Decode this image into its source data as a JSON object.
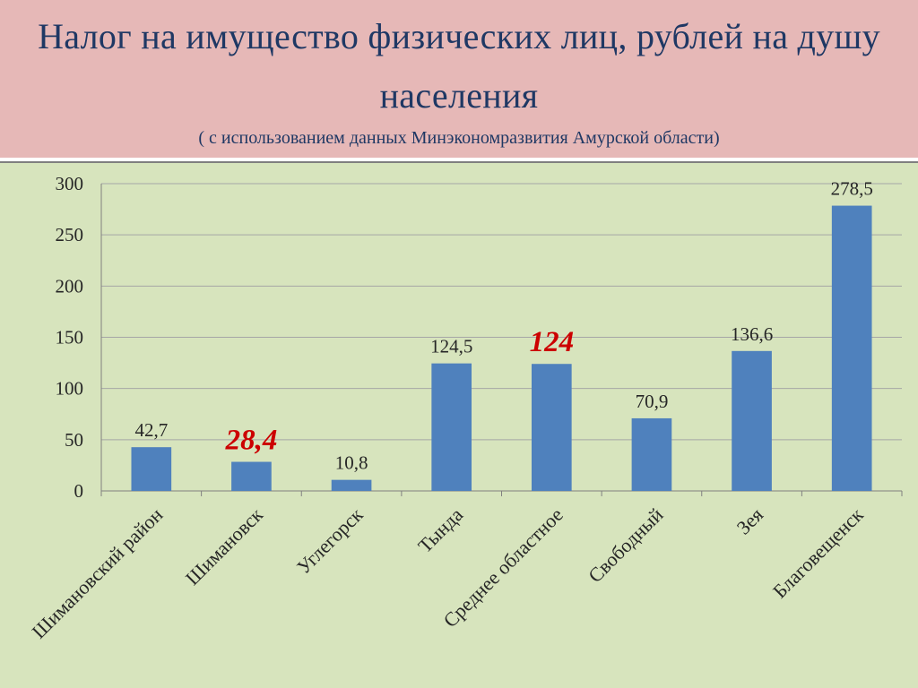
{
  "header": {
    "title": "Налог  на  имущество физических лиц,  рублей на душу населения",
    "subtitle": "( с использованием данных Минэкономразвития Амурской области)",
    "background_color": "#e6b8b7",
    "text_color": "#1f3864"
  },
  "chart_data": {
    "type": "bar",
    "categories": [
      "Шимановский район",
      "Шимановск",
      "Углегорск",
      "Тында",
      "Среднее областное",
      "Свободный",
      "Зея",
      "Благовещенск"
    ],
    "values": [
      42.7,
      28.4,
      10.8,
      124.5,
      124,
      70.9,
      136.6,
      278.5
    ],
    "data_labels": [
      "42,7",
      "28,4",
      "10,8",
      "124,5",
      "124",
      "70,9",
      "136,6",
      "278,5"
    ],
    "highlighted_labels": [
      1,
      4
    ],
    "highlight_color": "#cc0000",
    "ylim": [
      0,
      300
    ],
    "yticks": [
      0,
      50,
      100,
      150,
      200,
      250,
      300
    ],
    "grid": true,
    "bar_color": "#4f81bd",
    "plot_background": "#d7e4bd",
    "legend": "none"
  }
}
